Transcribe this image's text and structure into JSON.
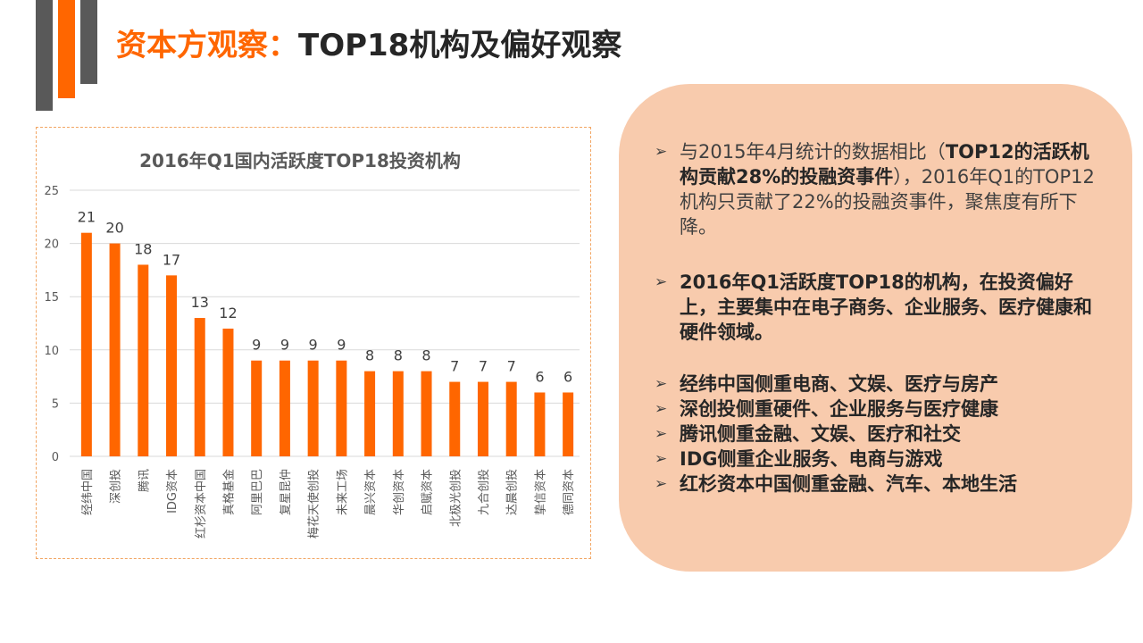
{
  "title": {
    "highlight": "资本方观察：",
    "rest": "TOP18机构及偏好观察"
  },
  "colors": {
    "accent": "#FF6600",
    "dark": "#595959",
    "panel": "#F8CBAD"
  },
  "chart_data": {
    "type": "bar",
    "title": "2016年Q1国内活跃度TOP18投资机构",
    "categories": [
      "经纬中国",
      "深创投",
      "腾讯",
      "IDG资本",
      "红杉资本中国",
      "真格基金",
      "阿里巴巴",
      "复星昆仲",
      "梅花天使创投",
      "未来工场",
      "晨兴资本",
      "华创资本",
      "启赋资本",
      "北极光创投",
      "九合创投",
      "达晨创投",
      "挚信资本",
      "德同资本"
    ],
    "values": [
      21,
      20,
      18,
      17,
      13,
      12,
      9,
      9,
      9,
      9,
      8,
      8,
      8,
      7,
      7,
      7,
      6,
      6
    ],
    "ylim": [
      0,
      25
    ],
    "yticks": [
      0,
      5,
      10,
      15,
      20,
      25
    ],
    "xlabel": "",
    "ylabel": "",
    "grid": true,
    "color": "#FF6600"
  },
  "panel": {
    "bullet1": {
      "pre": "与2015年4月统计的数据相比（",
      "bold": "TOP12的活跃机构贡献28%的投融资事件",
      "post": "），2016年Q1的TOP12机构只贡献了22%的投融资事件，聚焦度有所下降。"
    },
    "bullet2": "2016年Q1活跃度TOP18的机构，在投资偏好上，主要集中在电子商务、企业服务、医疗健康和硬件领域。",
    "items": [
      "经纬中国侧重电商、文娱、医疗与房产",
      "深创投侧重硬件、企业服务与医疗健康",
      "腾讯侧重金融、文娱、医疗和社交",
      "IDG侧重企业服务、电商与游戏",
      "红杉资本中国侧重金融、汽车、本地生活"
    ],
    "arrow_glyph": "➢"
  }
}
